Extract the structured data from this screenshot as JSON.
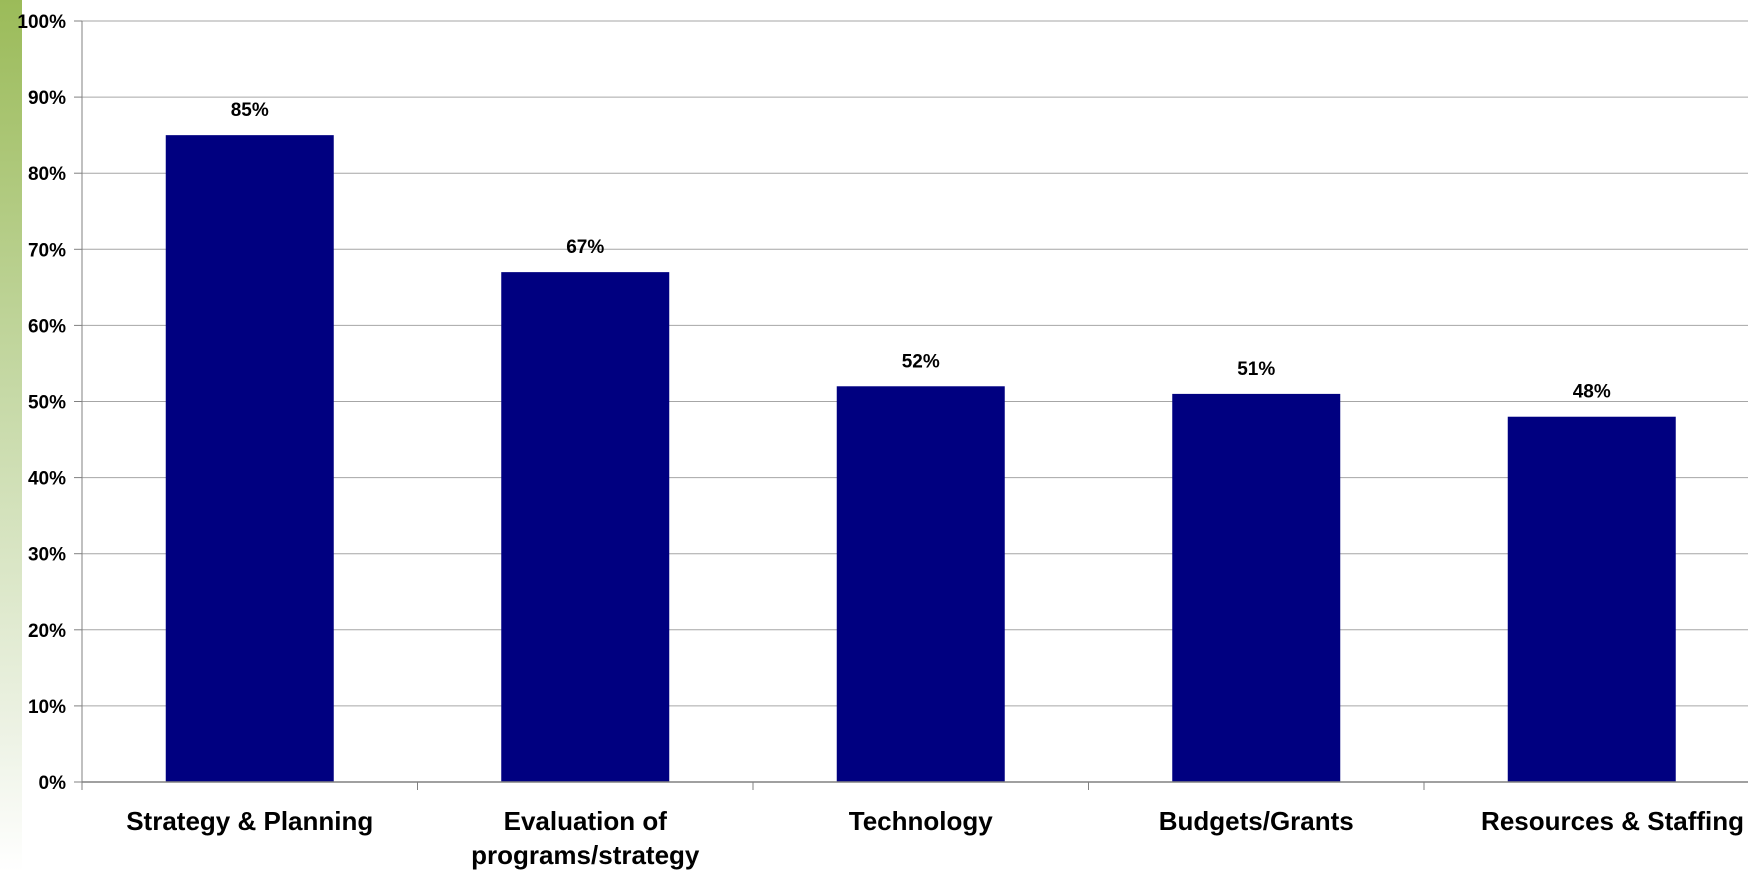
{
  "chart_data": {
    "type": "bar",
    "categories": [
      "Strategy & Planning",
      "Evaluation of programs/strategy",
      "Technology",
      "Budgets/Grants",
      "Resources & Staffing"
    ],
    "category_label_lines": [
      [
        "Strategy & Planning"
      ],
      [
        "Evaluation of",
        "programs/strategy"
      ],
      [
        "Technology"
      ],
      [
        "Budgets/Grants"
      ],
      [
        "Resources & Staffing"
      ]
    ],
    "values": [
      85,
      67,
      52,
      51,
      48
    ],
    "data_labels": [
      "85%",
      "67%",
      "52%",
      "51%",
      "48%"
    ],
    "ylim": [
      0,
      100
    ],
    "yticks": [
      0,
      10,
      20,
      30,
      40,
      50,
      60,
      70,
      80,
      90,
      100
    ],
    "ytick_labels": [
      "0%",
      "10%",
      "20%",
      "30%",
      "40%",
      "50%",
      "60%",
      "70%",
      "80%",
      "90%",
      "100%"
    ],
    "title": "",
    "xlabel": "",
    "ylabel": "",
    "grid": true,
    "legend": "none",
    "bar_color": "#000080",
    "grid_color": "#a6a6a6",
    "accent_color": "#9bbb59"
  }
}
